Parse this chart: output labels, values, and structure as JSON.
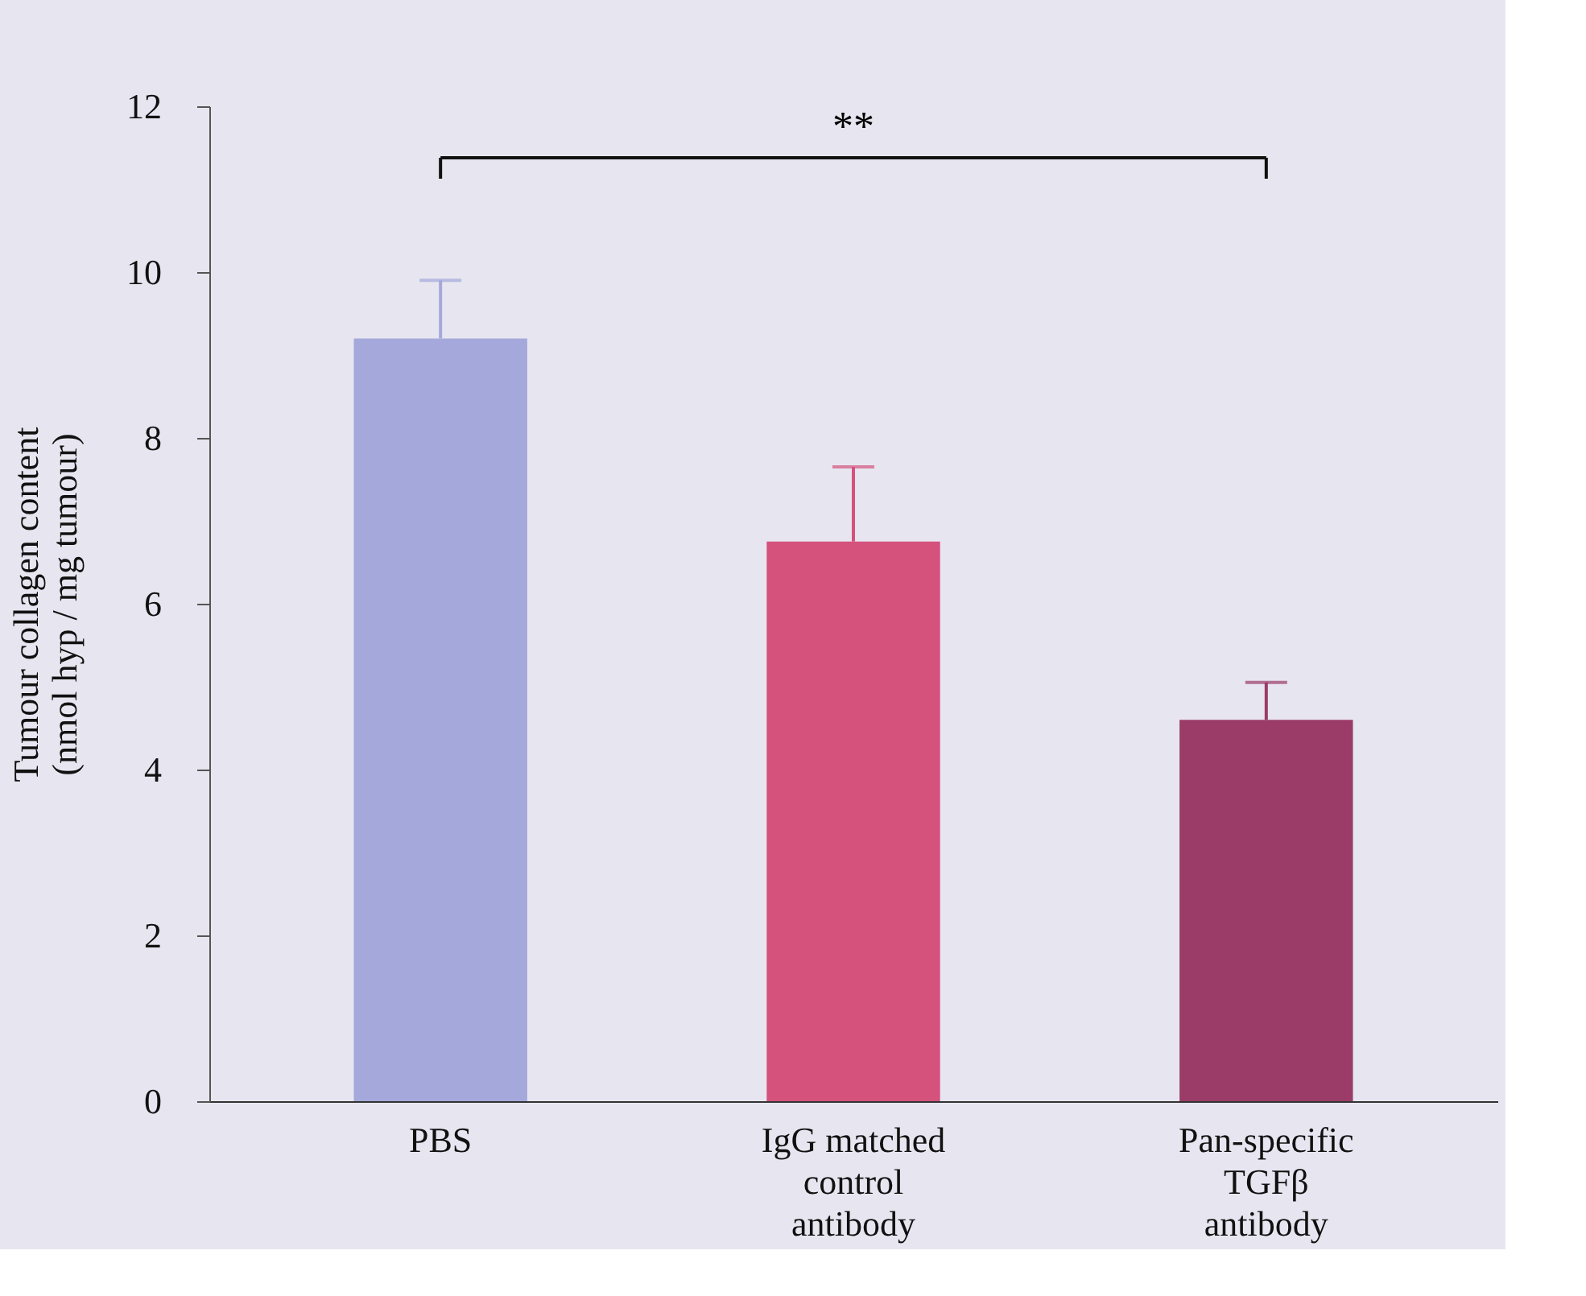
{
  "chart_data": {
    "type": "bar",
    "ylabel": "Tumour collagen content\n(nmol hyp / mg tumour)",
    "categories": [
      "PBS",
      "IgG matched\ncontrol\nantibody",
      "Pan-specific\nTGFβ\nantibody"
    ],
    "values": [
      9.2,
      6.75,
      4.6
    ],
    "errors": [
      0.7,
      0.9,
      0.45
    ],
    "colors": [
      "#a4a8da",
      "#d4527c",
      "#9a3b68"
    ],
    "ylim": [
      0,
      12
    ],
    "yticks": [
      0,
      2,
      4,
      6,
      8,
      10,
      12
    ],
    "annotations": [
      "**"
    ],
    "grid": false,
    "legend": false
  }
}
